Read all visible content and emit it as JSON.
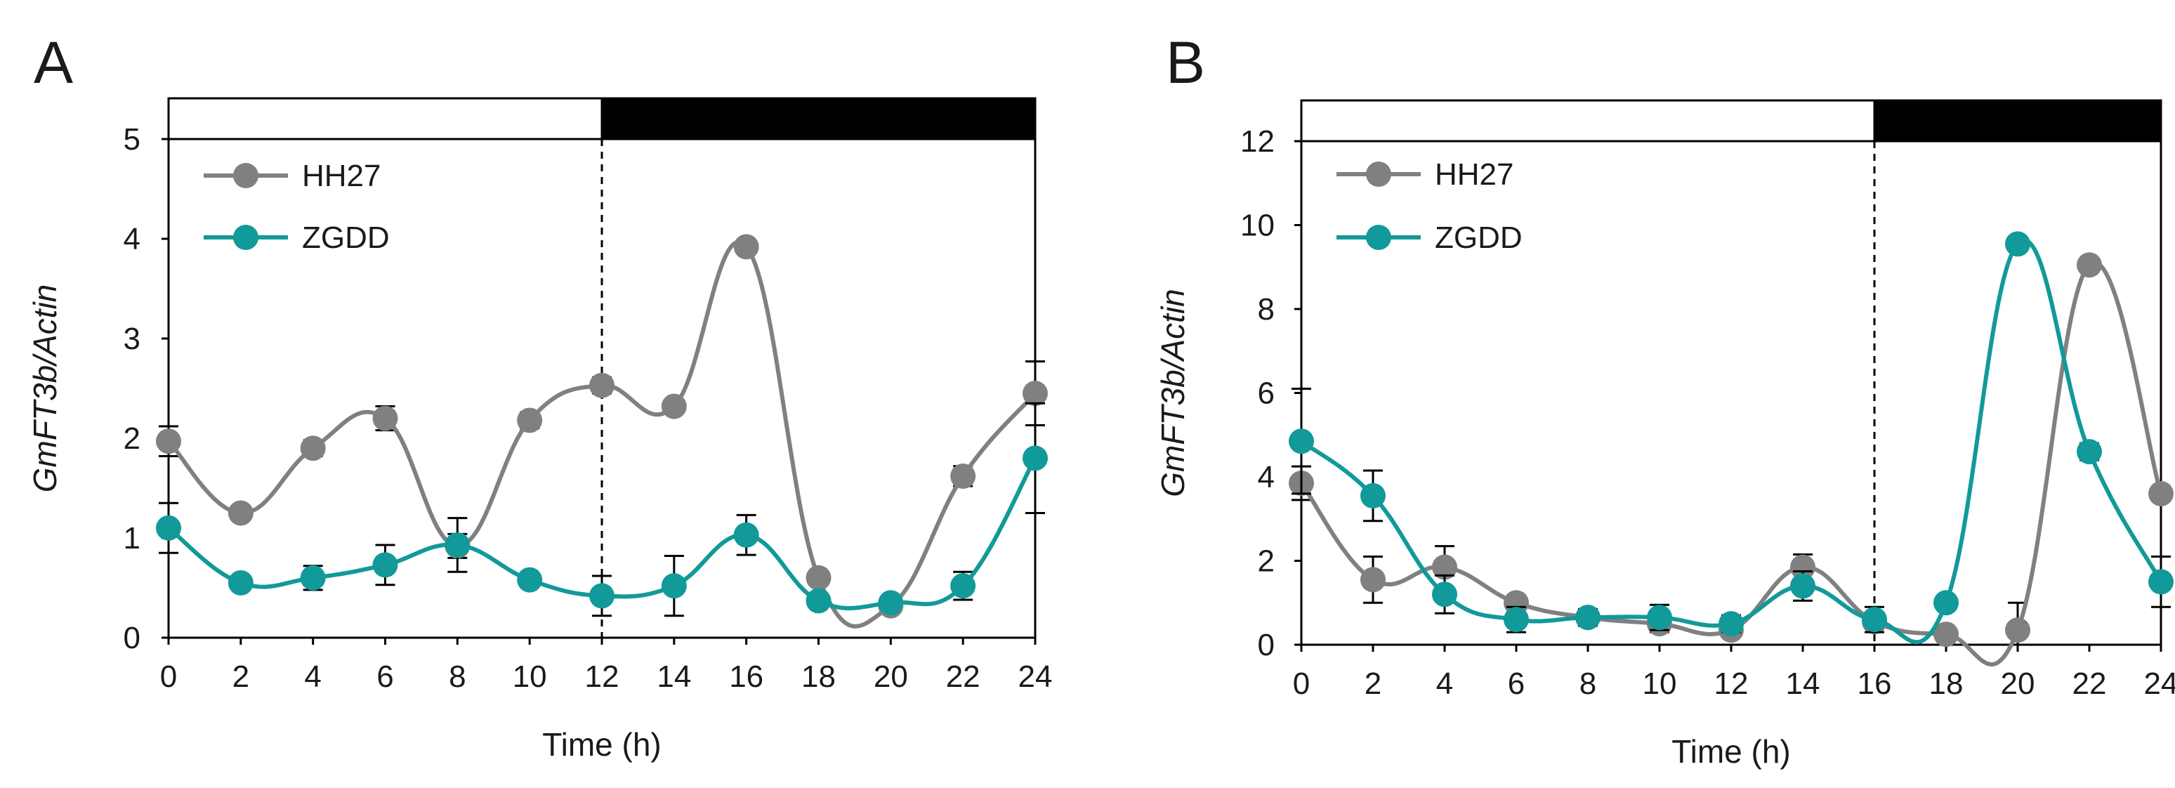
{
  "colors": {
    "hh27": "#808080",
    "zgdd": "#12999a",
    "axis": "#000000",
    "dark_bar": "#000000",
    "light_bar": "#ffffff"
  },
  "chart_data": [
    {
      "type": "line",
      "panel_label": "A",
      "title": "",
      "xlabel": "Time  (h)",
      "ylabel_main": "GmFT3b",
      "ylabel_suffix": "/Actin",
      "x": [
        0,
        2,
        4,
        6,
        8,
        10,
        12,
        14,
        16,
        18,
        20,
        22,
        24
      ],
      "x_ticks": [
        "0",
        "2",
        "4",
        "6",
        "8",
        "10",
        "12",
        "14",
        "16",
        "18",
        "20",
        "22",
        "24"
      ],
      "y_ticks": [
        "0",
        "1",
        "2",
        "3",
        "4",
        "5"
      ],
      "xlim": [
        0,
        24
      ],
      "ylim": [
        0,
        5
      ],
      "light_period": [
        0,
        12
      ],
      "dark_period": [
        12,
        24
      ],
      "series": [
        {
          "name": "HH27",
          "color": "#808080",
          "values": [
            1.97,
            1.25,
            1.9,
            2.2,
            0.92,
            2.18,
            2.53,
            2.32,
            3.92,
            0.6,
            0.32,
            1.62,
            2.45
          ],
          "errors": [
            0.15,
            0.05,
            0.08,
            0.12,
            0.12,
            0.08,
            0.08,
            0.05,
            0.06,
            0.07,
            0.06,
            0.1,
            0.32
          ]
        },
        {
          "name": "ZGDD",
          "color": "#12999a",
          "values": [
            1.1,
            0.55,
            0.6,
            0.73,
            0.93,
            0.58,
            0.42,
            0.52,
            1.03,
            0.37,
            0.35,
            0.52,
            1.8
          ],
          "errors": [
            0.25,
            0.05,
            0.12,
            0.2,
            0.27,
            0.06,
            0.2,
            0.3,
            0.2,
            0.06,
            0.06,
            0.14,
            0.55
          ]
        }
      ],
      "legend": {
        "placement": "top-left",
        "entries": [
          "HH27",
          "ZGDD"
        ]
      }
    },
    {
      "type": "line",
      "panel_label": "B",
      "title": "",
      "xlabel": "Time  (h)",
      "ylabel_main": "GmFT3b",
      "ylabel_suffix": "/Actin",
      "x": [
        0,
        2,
        4,
        6,
        8,
        10,
        12,
        14,
        16,
        18,
        20,
        22,
        24
      ],
      "x_ticks": [
        "0",
        "2",
        "4",
        "6",
        "8",
        "10",
        "12",
        "14",
        "16",
        "18",
        "20",
        "22",
        "24"
      ],
      "y_ticks": [
        "0",
        "2",
        "4",
        "6",
        "8",
        "10",
        "12"
      ],
      "xlim": [
        0,
        24
      ],
      "ylim": [
        0,
        12
      ],
      "light_period": [
        0,
        16
      ],
      "dark_period": [
        16,
        24
      ],
      "series": [
        {
          "name": "HH27",
          "color": "#808080",
          "values": [
            3.85,
            1.55,
            1.85,
            1.0,
            0.65,
            0.5,
            0.35,
            1.85,
            0.55,
            0.25,
            0.35,
            9.05,
            3.6
          ],
          "errors": [
            0.4,
            0.55,
            0.5,
            0.15,
            0.1,
            0.2,
            0.1,
            0.3,
            0.15,
            0.05,
            0.65,
            0.1,
            0.1
          ]
        },
        {
          "name": "ZGDD",
          "color": "#12999a",
          "values": [
            4.85,
            3.55,
            1.2,
            0.6,
            0.65,
            0.65,
            0.5,
            1.4,
            0.6,
            1.0,
            9.55,
            4.6,
            1.5
          ],
          "errors": [
            1.25,
            0.6,
            0.45,
            0.3,
            0.2,
            0.3,
            0.2,
            0.35,
            0.3,
            0.1,
            0.1,
            0.2,
            0.6
          ]
        }
      ],
      "legend": {
        "placement": "top-left",
        "entries": [
          "HH27",
          "ZGDD"
        ]
      }
    }
  ]
}
